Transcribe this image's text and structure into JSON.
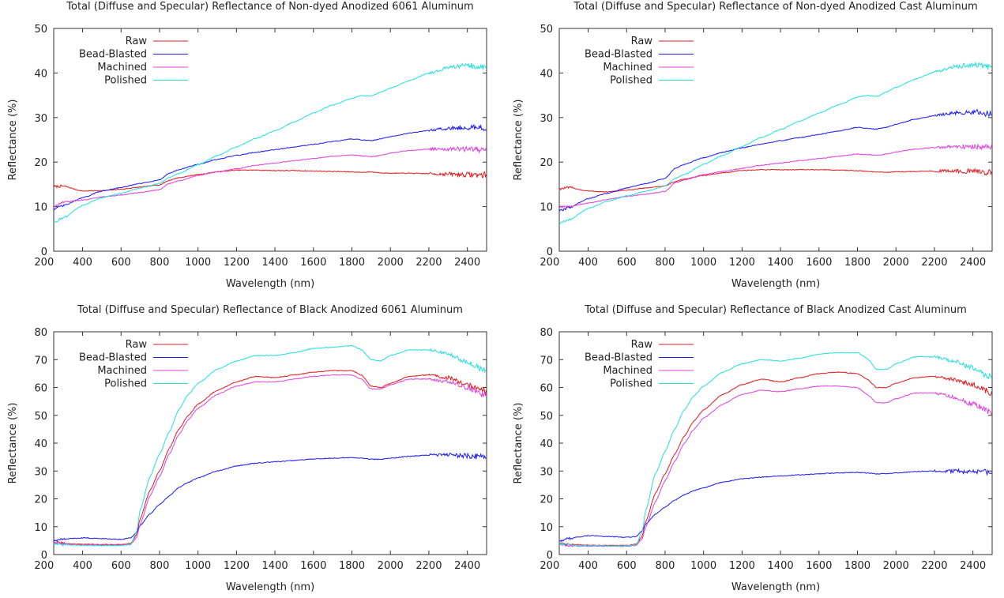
{
  "chart_data": [
    {
      "type": "line",
      "title": "Total (Diffuse and Specular) Reflectance of Non-dyed Anodized 6061 Aluminum",
      "xlabel": "Wavelength (nm)",
      "ylabel": "Reflectance (%)",
      "xlim": [
        250,
        2500
      ],
      "ylim": [
        0,
        50
      ],
      "xticks": [
        200,
        400,
        600,
        800,
        1000,
        1200,
        1400,
        1600,
        1800,
        2000,
        2200,
        2400
      ],
      "yticks": [
        0,
        10,
        20,
        30,
        40,
        50
      ],
      "grid": false,
      "legend_position": "top-left",
      "x": [
        250,
        300,
        400,
        500,
        600,
        700,
        800,
        850,
        900,
        1000,
        1100,
        1200,
        1300,
        1400,
        1500,
        1600,
        1700,
        1800,
        1850,
        1900,
        1950,
        2000,
        2100,
        2200,
        2300,
        2400,
        2500
      ],
      "series": [
        {
          "name": "Raw",
          "color": "#e41a1c",
          "values": [
            14.5,
            14.6,
            13.5,
            13.6,
            13.9,
            14.4,
            14.9,
            15.9,
            16.5,
            17.2,
            17.8,
            18.2,
            18.2,
            18.1,
            18.1,
            18.0,
            17.9,
            17.8,
            17.7,
            17.8,
            17.6,
            17.5,
            17.5,
            17.4,
            17.3,
            17.2,
            17.1
          ]
        },
        {
          "name": "Bead-Blasted",
          "color": "#1a1aff",
          "values": [
            9.5,
            10.2,
            12.0,
            13.5,
            14.3,
            15.2,
            16.0,
            17.5,
            18.3,
            19.5,
            20.6,
            21.5,
            22.2,
            22.8,
            23.4,
            24.0,
            24.6,
            25.2,
            25.0,
            24.8,
            25.2,
            25.7,
            26.5,
            27.1,
            27.6,
            27.8,
            27.5
          ]
        },
        {
          "name": "Machined",
          "color": "#e040e0",
          "values": [
            10.0,
            11.0,
            11.5,
            12.2,
            12.6,
            13.2,
            13.8,
            15.2,
            15.8,
            17.0,
            17.8,
            18.5,
            19.3,
            19.8,
            20.3,
            20.8,
            21.3,
            21.6,
            21.4,
            21.2,
            21.5,
            22.0,
            22.6,
            22.9,
            23.0,
            22.9,
            22.7
          ]
        },
        {
          "name": "Polished",
          "color": "#22e0e0",
          "values": [
            6.5,
            7.5,
            10.3,
            12.0,
            13.0,
            14.2,
            15.2,
            16.5,
            17.4,
            19.4,
            21.4,
            23.4,
            25.3,
            27.0,
            29.0,
            31.0,
            32.8,
            34.3,
            34.9,
            34.8,
            35.7,
            36.6,
            38.3,
            40.0,
            41.2,
            41.7,
            41.2
          ]
        }
      ]
    },
    {
      "type": "line",
      "title": "Total (Diffuse and Specular) Reflectance of Non-dyed Anodized Cast Aluminum",
      "xlabel": "Wavelength (nm)",
      "ylabel": "Reflectance (%)",
      "xlim": [
        250,
        2500
      ],
      "ylim": [
        0,
        50
      ],
      "xticks": [
        200,
        400,
        600,
        800,
        1000,
        1200,
        1400,
        1600,
        1800,
        2000,
        2200,
        2400
      ],
      "yticks": [
        0,
        10,
        20,
        30,
        40,
        50
      ],
      "grid": false,
      "legend_position": "top-left",
      "x": [
        250,
        300,
        400,
        500,
        600,
        700,
        800,
        850,
        900,
        1000,
        1100,
        1200,
        1300,
        1400,
        1500,
        1600,
        1700,
        1800,
        1850,
        1900,
        1950,
        2000,
        2100,
        2200,
        2300,
        2400,
        2500
      ],
      "series": [
        {
          "name": "Raw",
          "color": "#e41a1c",
          "values": [
            14.0,
            14.3,
            13.5,
            13.3,
            13.7,
            14.2,
            14.6,
            15.6,
            16.2,
            17.0,
            17.6,
            18.1,
            18.3,
            18.3,
            18.3,
            18.3,
            18.2,
            18.1,
            17.9,
            17.8,
            17.7,
            17.8,
            17.9,
            18.0,
            18.0,
            17.9,
            17.7
          ]
        },
        {
          "name": "Bead-Blasted",
          "color": "#1a1aff",
          "values": [
            9.0,
            9.8,
            11.8,
            13.0,
            14.2,
            15.2,
            16.3,
            18.5,
            19.5,
            21.0,
            22.2,
            23.2,
            24.0,
            24.8,
            25.5,
            26.2,
            27.0,
            27.8,
            27.6,
            27.4,
            27.8,
            28.5,
            29.6,
            30.4,
            31.0,
            31.3,
            30.8
          ]
        },
        {
          "name": "Machined",
          "color": "#e040e0",
          "values": [
            10.0,
            10.0,
            10.8,
            11.6,
            12.3,
            12.8,
            13.4,
            15.3,
            16.0,
            17.2,
            17.9,
            18.6,
            19.3,
            19.8,
            20.3,
            20.8,
            21.3,
            21.8,
            21.7,
            21.5,
            21.8,
            22.3,
            22.9,
            23.3,
            23.5,
            23.5,
            23.3
          ]
        },
        {
          "name": "Polished",
          "color": "#22e0e0",
          "values": [
            6.2,
            7.0,
            9.6,
            11.2,
            12.4,
            13.5,
            14.6,
            16.3,
            17.2,
            19.5,
            21.5,
            23.5,
            25.5,
            27.3,
            29.2,
            31.0,
            32.8,
            34.6,
            35.0,
            34.7,
            35.7,
            36.8,
            38.6,
            40.2,
            41.4,
            41.9,
            41.3
          ]
        }
      ]
    },
    {
      "type": "line",
      "title": "Total (Diffuse and Specular) Reflectance of Black Anodized 6061 Aluminum",
      "xlabel": "Wavelength (nm)",
      "ylabel": "Reflectance (%)",
      "xlim": [
        250,
        2500
      ],
      "ylim": [
        0,
        80
      ],
      "xticks": [
        200,
        400,
        600,
        800,
        1000,
        1200,
        1400,
        1600,
        1800,
        2000,
        2200,
        2400
      ],
      "yticks": [
        0,
        10,
        20,
        30,
        40,
        50,
        60,
        70,
        80
      ],
      "grid": false,
      "legend_position": "top-left",
      "x": [
        250,
        300,
        350,
        400,
        500,
        600,
        650,
        680,
        700,
        750,
        800,
        850,
        900,
        950,
        1000,
        1100,
        1200,
        1300,
        1400,
        1500,
        1600,
        1700,
        1800,
        1850,
        1900,
        1950,
        2000,
        2100,
        2200,
        2300,
        2400,
        2500
      ],
      "series": [
        {
          "name": "Raw",
          "color": "#e41a1c",
          "values": [
            4.5,
            4.0,
            3.8,
            3.7,
            3.6,
            3.6,
            4.0,
            7.0,
            13.0,
            23.0,
            30.0,
            38.0,
            45.0,
            50.0,
            54.0,
            59.0,
            62.0,
            64.0,
            63.5,
            64.5,
            65.5,
            66.0,
            66.0,
            64.5,
            60.5,
            60.0,
            61.5,
            64.0,
            64.5,
            63.5,
            61.0,
            58.5
          ]
        },
        {
          "name": "Bead-Blasted",
          "color": "#1a1aff",
          "values": [
            5.0,
            5.5,
            5.8,
            6.0,
            5.7,
            5.5,
            6.0,
            8.0,
            10.5,
            14.5,
            18.0,
            21.0,
            24.0,
            26.0,
            27.5,
            30.0,
            31.8,
            32.8,
            33.3,
            33.8,
            34.3,
            34.6,
            34.8,
            34.6,
            34.2,
            34.2,
            34.6,
            35.3,
            35.7,
            35.8,
            35.5,
            35.0
          ]
        },
        {
          "name": "Machined",
          "color": "#e040e0",
          "values": [
            4.2,
            3.8,
            3.6,
            3.5,
            3.4,
            3.4,
            3.7,
            6.0,
            11.0,
            21.0,
            28.0,
            36.0,
            43.0,
            48.5,
            52.5,
            57.5,
            60.5,
            62.0,
            62.0,
            63.0,
            64.0,
            64.5,
            64.5,
            63.0,
            59.5,
            59.5,
            61.0,
            63.0,
            63.0,
            62.0,
            60.0,
            57.0
          ]
        },
        {
          "name": "Polished",
          "color": "#22e0e0",
          "values": [
            4.0,
            3.6,
            3.4,
            3.3,
            3.2,
            3.2,
            3.5,
            8.0,
            16.0,
            28.0,
            36.0,
            44.0,
            52.0,
            57.5,
            61.5,
            66.5,
            69.5,
            71.5,
            71.5,
            72.5,
            74.0,
            74.5,
            75.0,
            73.5,
            70.0,
            69.5,
            71.5,
            73.5,
            73.5,
            72.0,
            69.0,
            66.0
          ]
        }
      ]
    },
    {
      "type": "line",
      "title": "Total (Diffuse and Specular) Reflectance of Black Anodized Cast Aluminum",
      "xlabel": "Wavelength (nm)",
      "ylabel": "Reflectance (%)",
      "xlim": [
        250,
        2500
      ],
      "ylim": [
        0,
        80
      ],
      "xticks": [
        200,
        400,
        600,
        800,
        1000,
        1200,
        1400,
        1600,
        1800,
        2000,
        2200,
        2400
      ],
      "yticks": [
        0,
        10,
        20,
        30,
        40,
        50,
        60,
        70,
        80
      ],
      "grid": false,
      "legend_position": "top-left",
      "x": [
        250,
        300,
        350,
        400,
        500,
        600,
        650,
        680,
        700,
        750,
        800,
        850,
        900,
        950,
        1000,
        1100,
        1200,
        1300,
        1400,
        1500,
        1600,
        1700,
        1800,
        1850,
        1900,
        1950,
        2000,
        2100,
        2200,
        2300,
        2400,
        2500
      ],
      "series": [
        {
          "name": "Raw",
          "color": "#e41a1c",
          "values": [
            4.0,
            3.6,
            3.5,
            3.4,
            3.3,
            3.3,
            3.7,
            6.5,
            12.0,
            22.0,
            29.0,
            36.0,
            42.5,
            48.0,
            52.0,
            57.5,
            61.0,
            63.0,
            62.0,
            63.5,
            65.0,
            65.5,
            65.0,
            63.0,
            60.0,
            60.0,
            61.5,
            63.5,
            64.0,
            63.0,
            61.0,
            58.0
          ]
        },
        {
          "name": "Bead-Blasted",
          "color": "#1a1aff",
          "values": [
            4.8,
            5.8,
            6.3,
            6.8,
            6.5,
            6.2,
            6.5,
            8.5,
            11.0,
            14.5,
            17.0,
            19.5,
            21.5,
            23.0,
            24.0,
            26.0,
            27.2,
            27.8,
            28.2,
            28.6,
            29.0,
            29.3,
            29.5,
            29.3,
            29.0,
            29.0,
            29.3,
            29.8,
            30.0,
            30.0,
            29.8,
            29.5
          ]
        },
        {
          "name": "Machined",
          "color": "#e040e0",
          "values": [
            3.5,
            3.2,
            3.1,
            3.0,
            3.0,
            3.0,
            3.3,
            5.5,
            10.0,
            19.0,
            26.5,
            33.5,
            40.0,
            45.0,
            49.0,
            54.0,
            57.5,
            59.0,
            58.5,
            59.5,
            60.5,
            60.5,
            60.0,
            57.5,
            54.5,
            54.5,
            56.0,
            58.0,
            58.0,
            56.5,
            54.0,
            51.0
          ]
        },
        {
          "name": "Polished",
          "color": "#22e0e0",
          "values": [
            3.8,
            3.5,
            3.3,
            3.2,
            3.1,
            3.1,
            3.5,
            8.0,
            16.0,
            29.0,
            37.0,
            45.0,
            52.0,
            57.0,
            60.5,
            65.5,
            68.5,
            70.0,
            69.5,
            70.5,
            72.0,
            72.5,
            72.5,
            70.5,
            66.5,
            66.5,
            68.5,
            71.0,
            71.0,
            69.5,
            67.0,
            63.5
          ]
        }
      ]
    }
  ]
}
